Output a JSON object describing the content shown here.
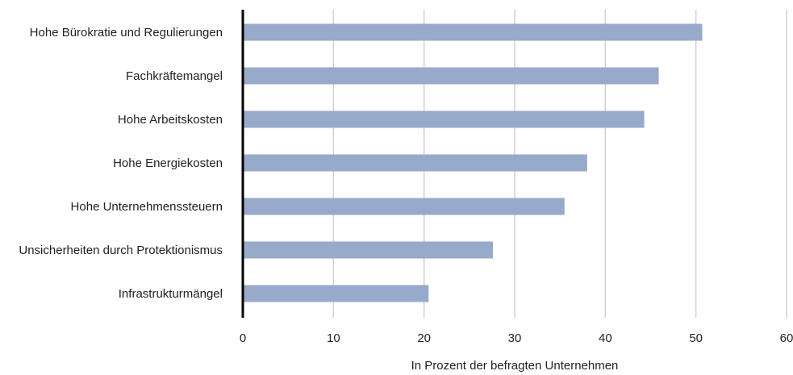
{
  "chart_data": {
    "type": "bar",
    "orientation": "horizontal",
    "categories": [
      "Hohe Bürokratie und Regulierungen",
      "Fachkräftemangel",
      "Hohe Arbeitskosten",
      "Hohe Energiekosten",
      "Hohe Unternehmenssteuern",
      "Unsicherheiten durch Protektionismus",
      "Infrastrukturmängel"
    ],
    "values": [
      50.7,
      45.9,
      44.3,
      38.0,
      35.5,
      27.6,
      20.5
    ],
    "xlabel": "In Prozent der befragten Unternehmen",
    "ylabel": "",
    "xlim": [
      0,
      60
    ],
    "xticks": [
      "0",
      "10",
      "20",
      "30",
      "40",
      "50",
      "60"
    ],
    "grid": true,
    "colors": {
      "bar": "#98aac9",
      "grid": "#d0d0d0",
      "axis": "#000000",
      "text": "#222222"
    }
  }
}
